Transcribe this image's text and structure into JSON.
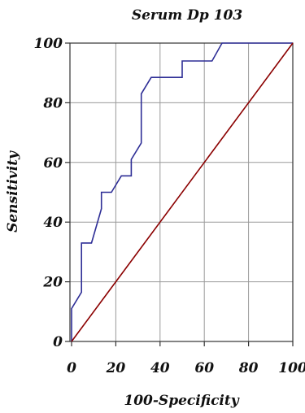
{
  "chart_data": {
    "type": "line",
    "title": "Serum Dp 103",
    "xlabel": "100-Specificity",
    "ylabel": "Sensitivity",
    "xlim": [
      0,
      100
    ],
    "ylim": [
      0,
      100
    ],
    "x_ticks": [
      "0",
      "20",
      "40",
      "60",
      "80",
      "100"
    ],
    "y_ticks": [
      "0",
      "20",
      "40",
      "60",
      "80",
      "100"
    ],
    "grid": true,
    "series": [
      {
        "color": "#2e2e96",
        "x": [
          0,
          0,
          4.5,
          4.5,
          9,
          13.5,
          13.5,
          18,
          22.5,
          27,
          27,
          31.5,
          31.5,
          36,
          50,
          50,
          63.5,
          68,
          100
        ],
        "y": [
          0,
          11,
          16.5,
          33,
          33,
          44.5,
          50,
          50,
          55.5,
          55.5,
          61,
          66.5,
          83,
          88.5,
          88.5,
          94,
          94,
          100,
          100
        ]
      },
      {
        "color": "#8b0000",
        "x": [
          0,
          100
        ],
        "y": [
          0,
          100
        ]
      }
    ]
  }
}
